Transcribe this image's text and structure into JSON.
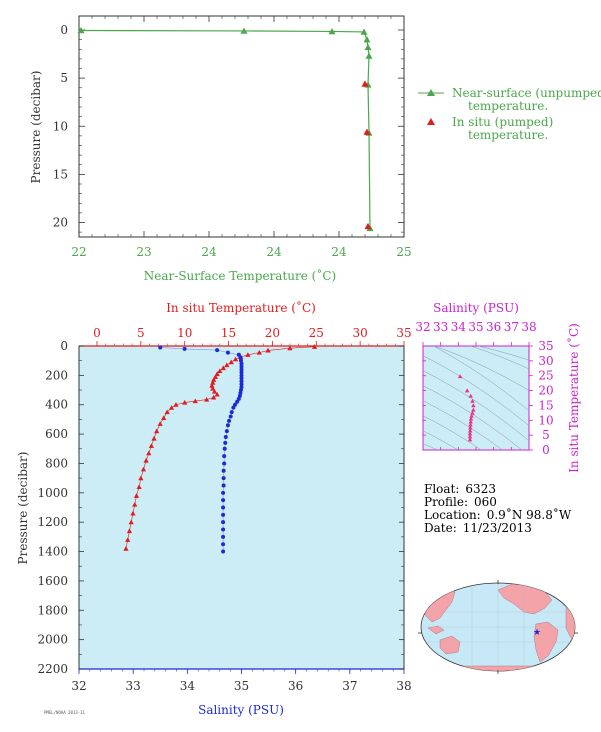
{
  "colors": {
    "green": "#4aa84a",
    "red": "#e01c1c",
    "blue": "#1c2ad8",
    "magenta": "#cc22cc",
    "panel_bg": "#ccecf6",
    "land": "#f4a3a8",
    "ocean": "#c7e9f7"
  },
  "chart_data": [
    {
      "type": "line",
      "id": "near-surface-profile",
      "xlabel": "Near-Surface Temperature (˚C)",
      "ylabel": "Pressure (decibar)",
      "x_ticks": [
        "22",
        "23",
        "24",
        "24",
        "24",
        "25"
      ],
      "y_ticks": [
        "0",
        "5",
        "10",
        "15",
        "20"
      ],
      "xlim": [
        22,
        25
      ],
      "ylim": [
        0,
        22
      ],
      "legend_placement": "right",
      "series": [
        {
          "name": "Near-surface (unpumped) temperature.",
          "marker": "triangle",
          "color": "#4aa84a",
          "points": [
            {
              "x": 22.01,
              "y": 0.05
            },
            {
              "x": 24.55,
              "y": 0.1
            },
            {
              "x": 23.9,
              "y": 0.15
            },
            {
              "x": 24.43,
              "y": 0.2
            },
            {
              "x": 24.46,
              "y": 1.0
            },
            {
              "x": 24.47,
              "y": 1.8
            },
            {
              "x": 24.48,
              "y": 2.7
            },
            {
              "x": 24.47,
              "y": 5.7
            },
            {
              "x": 24.48,
              "y": 10.7
            },
            {
              "x": 24.49,
              "y": 20.6
            }
          ]
        },
        {
          "name": "In situ (pumped) temperature.",
          "marker": "triangle",
          "color": "#e01c1c",
          "points": [
            {
              "x": 24.46,
              "y": 5.6
            },
            {
              "x": 24.48,
              "y": 10.6
            },
            {
              "x": 24.49,
              "y": 20.4
            }
          ]
        }
      ]
    },
    {
      "type": "scatter",
      "id": "deep-profile",
      "top_xlabel": "In situ Temperature (˚C)",
      "bottom_xlabel": "Salinity (PSU)",
      "ylabel": "Pressure (decibar)",
      "top_ticks": [
        "0",
        "5",
        "10",
        "15",
        "20",
        "25",
        "30",
        "35"
      ],
      "bottom_ticks": [
        "32",
        "33",
        "34",
        "35",
        "36",
        "37",
        "38"
      ],
      "y_ticks": [
        "0",
        "200",
        "400",
        "600",
        "800",
        "1000",
        "1200",
        "1400",
        "1600",
        "1800",
        "2000",
        "2200"
      ],
      "temperature_range": [
        0,
        35
      ],
      "salinity_range": [
        32,
        38
      ],
      "pressure_range": [
        0,
        2200
      ],
      "series": [
        {
          "name": "temperature",
          "color": "#e01c1c",
          "marker": "triangle",
          "points": [
            {
              "t": 24.8,
              "p": 5
            },
            {
              "t": 22.0,
              "p": 15
            },
            {
              "t": 19.5,
              "p": 30
            },
            {
              "t": 18.5,
              "p": 45
            },
            {
              "t": 17.2,
              "p": 60
            },
            {
              "t": 16.4,
              "p": 75
            },
            {
              "t": 15.8,
              "p": 90
            },
            {
              "t": 15.3,
              "p": 110
            },
            {
              "t": 14.8,
              "p": 130
            },
            {
              "t": 14.4,
              "p": 150
            },
            {
              "t": 14.0,
              "p": 170
            },
            {
              "t": 13.7,
              "p": 190
            },
            {
              "t": 13.5,
              "p": 210
            },
            {
              "t": 13.3,
              "p": 230
            },
            {
              "t": 13.2,
              "p": 250
            },
            {
              "t": 13.1,
              "p": 270
            },
            {
              "t": 13.2,
              "p": 290
            },
            {
              "t": 13.4,
              "p": 310
            },
            {
              "t": 13.7,
              "p": 330
            },
            {
              "t": 13.3,
              "p": 350
            },
            {
              "t": 12.5,
              "p": 365
            },
            {
              "t": 11.2,
              "p": 375
            },
            {
              "t": 10.0,
              "p": 385
            },
            {
              "t": 9.0,
              "p": 400
            },
            {
              "t": 8.5,
              "p": 420
            },
            {
              "t": 8.0,
              "p": 450
            },
            {
              "t": 7.6,
              "p": 490
            },
            {
              "t": 7.2,
              "p": 530
            },
            {
              "t": 6.8,
              "p": 580
            },
            {
              "t": 6.5,
              "p": 630
            },
            {
              "t": 6.2,
              "p": 680
            },
            {
              "t": 5.9,
              "p": 730
            },
            {
              "t": 5.6,
              "p": 780
            },
            {
              "t": 5.3,
              "p": 840
            },
            {
              "t": 5.0,
              "p": 900
            },
            {
              "t": 4.8,
              "p": 960
            },
            {
              "t": 4.5,
              "p": 1020
            },
            {
              "t": 4.3,
              "p": 1080
            },
            {
              "t": 4.1,
              "p": 1140
            },
            {
              "t": 3.9,
              "p": 1200
            },
            {
              "t": 3.7,
              "p": 1260
            },
            {
              "t": 3.5,
              "p": 1320
            },
            {
              "t": 3.3,
              "p": 1380
            }
          ]
        },
        {
          "name": "salinity",
          "color": "#1c2ad8",
          "marker": "dot",
          "points": [
            {
              "s": 33.5,
              "p": 10
            },
            {
              "s": 33.95,
              "p": 20
            },
            {
              "s": 34.55,
              "p": 28
            },
            {
              "s": 34.75,
              "p": 45
            },
            {
              "s": 34.95,
              "p": 60
            },
            {
              "s": 34.98,
              "p": 80
            },
            {
              "s": 34.99,
              "p": 100
            },
            {
              "s": 35.0,
              "p": 120
            },
            {
              "s": 35.0,
              "p": 140
            },
            {
              "s": 35.0,
              "p": 160
            },
            {
              "s": 35.0,
              "p": 180
            },
            {
              "s": 35.0,
              "p": 200
            },
            {
              "s": 35.0,
              "p": 220
            },
            {
              "s": 35.0,
              "p": 240
            },
            {
              "s": 35.0,
              "p": 260
            },
            {
              "s": 35.0,
              "p": 280
            },
            {
              "s": 34.99,
              "p": 300
            },
            {
              "s": 34.98,
              "p": 320
            },
            {
              "s": 34.97,
              "p": 340
            },
            {
              "s": 34.95,
              "p": 360
            },
            {
              "s": 34.92,
              "p": 380
            },
            {
              "s": 34.88,
              "p": 400
            },
            {
              "s": 34.85,
              "p": 420
            },
            {
              "s": 34.82,
              "p": 450
            },
            {
              "s": 34.8,
              "p": 480
            },
            {
              "s": 34.77,
              "p": 510
            },
            {
              "s": 34.75,
              "p": 540
            },
            {
              "s": 34.73,
              "p": 580
            },
            {
              "s": 34.71,
              "p": 620
            },
            {
              "s": 34.7,
              "p": 660
            },
            {
              "s": 34.69,
              "p": 700
            },
            {
              "s": 34.68,
              "p": 750
            },
            {
              "s": 34.68,
              "p": 800
            },
            {
              "s": 34.67,
              "p": 850
            },
            {
              "s": 34.67,
              "p": 900
            },
            {
              "s": 34.67,
              "p": 950
            },
            {
              "s": 34.66,
              "p": 1000
            },
            {
              "s": 34.66,
              "p": 1050
            },
            {
              "s": 34.66,
              "p": 1100
            },
            {
              "s": 34.66,
              "p": 1150
            },
            {
              "s": 34.66,
              "p": 1200
            },
            {
              "s": 34.66,
              "p": 1250
            },
            {
              "s": 34.66,
              "p": 1300
            },
            {
              "s": 34.66,
              "p": 1350
            },
            {
              "s": 34.66,
              "p": 1400
            }
          ]
        }
      ]
    },
    {
      "type": "scatter",
      "id": "ts-diagram",
      "top_xlabel": "Salinity (PSU)",
      "right_ylabel": "In situ Temperature (˚C)",
      "x_ticks": [
        "32",
        "33",
        "34",
        "35",
        "36",
        "37",
        "38"
      ],
      "y_ticks": [
        "0",
        "5",
        "10",
        "15",
        "20",
        "25",
        "30",
        "35"
      ],
      "xlim": [
        32,
        38
      ],
      "ylim": [
        0,
        35
      ],
      "series": [
        {
          "name": "ts",
          "color": "#ee2f87",
          "points": [
            {
              "s": 34.1,
              "t": 24.8
            },
            {
              "s": 34.5,
              "t": 20.0
            },
            {
              "s": 34.7,
              "t": 18.2
            },
            {
              "s": 34.8,
              "t": 16.5
            },
            {
              "s": 34.85,
              "t": 15.0
            },
            {
              "s": 34.85,
              "t": 13.5
            },
            {
              "s": 34.8,
              "t": 12.5
            },
            {
              "s": 34.75,
              "t": 11.5
            },
            {
              "s": 34.72,
              "t": 10.5
            },
            {
              "s": 34.7,
              "t": 9.5
            },
            {
              "s": 34.69,
              "t": 8.5
            },
            {
              "s": 34.68,
              "t": 7.5
            },
            {
              "s": 34.67,
              "t": 6.5
            },
            {
              "s": 34.66,
              "t": 5.5
            },
            {
              "s": 34.66,
              "t": 4.5
            },
            {
              "s": 34.66,
              "t": 3.5
            }
          ]
        }
      ]
    }
  ],
  "info": {
    "float_label": "Float:",
    "float": "6323",
    "profile_label": "Profile:",
    "profile": "060",
    "location_label": "Location:",
    "location": "0.9˚N  98.8˚W",
    "date_label": "Date:",
    "date": "11/23/2013"
  },
  "footer_code": "PMEL/NOAA 2013-11"
}
